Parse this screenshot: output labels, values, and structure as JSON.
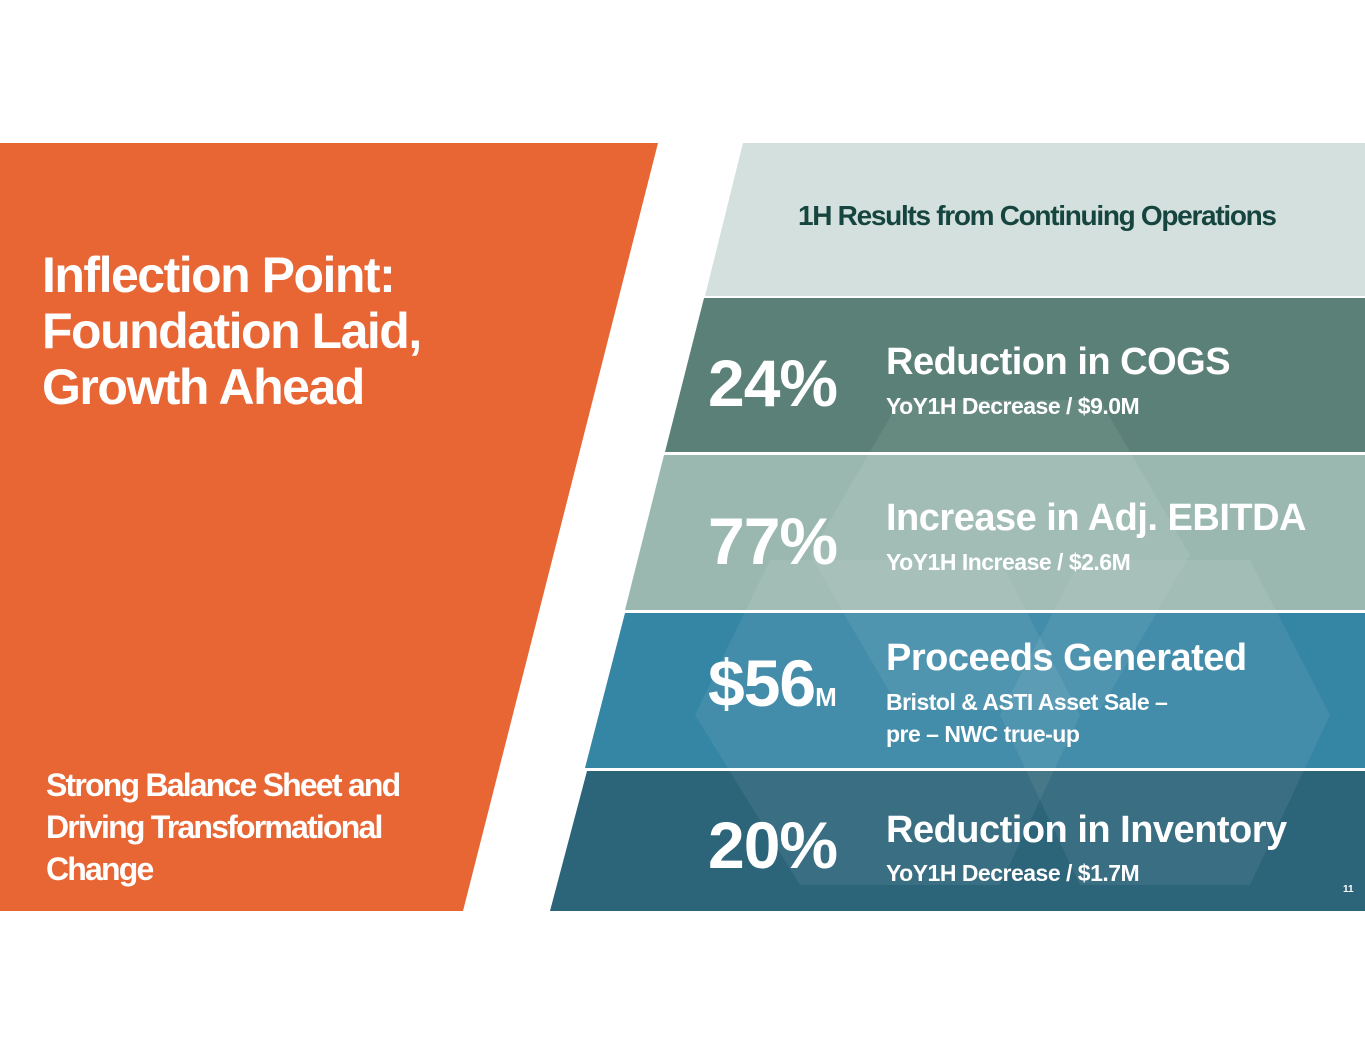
{
  "colors": {
    "orange": "#e86534",
    "header_band": "#d3e0dd",
    "band1": "#5b8077",
    "band2": "#9ab8b0",
    "band3": "#3585a4",
    "band4": "#2c6479",
    "header_text": "#16453f"
  },
  "left_panel": {
    "title": "Inflection Point:\nFoundation Laid,\nGrowth Ahead",
    "subtitle": "Strong Balance Sheet and\nDriving Transformational\nChange"
  },
  "header": {
    "text": "1H Results from Continuing Operations"
  },
  "stats": [
    {
      "value": "24%",
      "unit": "",
      "title": "Reduction in COGS",
      "subtitle": "YoY1H Decrease / $9.0M"
    },
    {
      "value": "77%",
      "unit": "",
      "title": "Increase in Adj. EBITDA",
      "subtitle": "YoY1H Increase / $2.6M"
    },
    {
      "value": "$56",
      "unit": "M",
      "title": "Proceeds Generated",
      "subtitle": "Bristol & ASTI Asset Sale –\npre – NWC true-up"
    },
    {
      "value": "20%",
      "unit": "",
      "title": "Reduction in Inventory",
      "subtitle": "YoY1H Decrease /  $1.7M"
    }
  ],
  "page_number": "11"
}
